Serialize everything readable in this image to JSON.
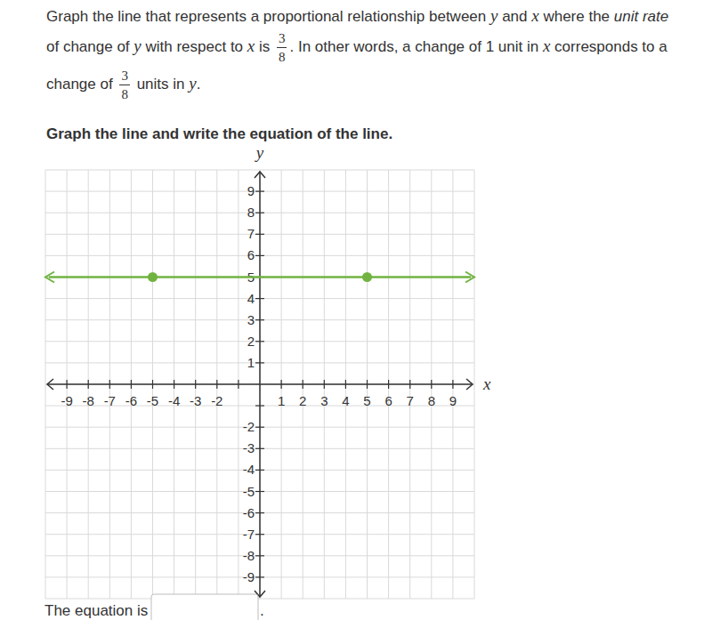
{
  "chart_data": {
    "type": "line",
    "question": [
      [
        "Graph the line that represents a proportional relationship between ",
        {
          "var": "y"
        },
        " and ",
        {
          "var": "x"
        },
        " where the ",
        {
          "em": "unit rate"
        }
      ],
      [
        "of change of ",
        {
          "var": "y"
        },
        " with respect to ",
        {
          "var": "x"
        },
        " is ",
        {
          "frac": [
            "3",
            "8"
          ]
        },
        ". In other words, a change of 1 unit in ",
        {
          "var": "x"
        },
        " corresponds to a"
      ],
      [
        "change of ",
        {
          "frac": [
            "3",
            "8"
          ]
        },
        " units in ",
        {
          "var": "y"
        },
        "."
      ]
    ],
    "title": "Graph the line and write the equation of the line.",
    "x_label": "x",
    "y_label": "y",
    "xlim": [
      -10,
      10
    ],
    "ylim": [
      -10,
      10
    ],
    "xticks": [
      -9,
      -8,
      -7,
      -6,
      -5,
      -4,
      -3,
      -2,
      1,
      2,
      3,
      4,
      5,
      6,
      7,
      8,
      9
    ],
    "yticks": [
      -9,
      -8,
      -7,
      -6,
      -5,
      -4,
      -3,
      -2,
      1,
      2,
      3,
      4,
      5,
      6,
      7,
      8,
      9
    ],
    "grid": true,
    "series": [
      {
        "name": "line",
        "color": "#71b340",
        "marker": "circle",
        "x": [
          -5,
          5
        ],
        "values": [
          5,
          5
        ]
      }
    ],
    "answer_prompt": "The equation is",
    "answer_suffix": "."
  }
}
